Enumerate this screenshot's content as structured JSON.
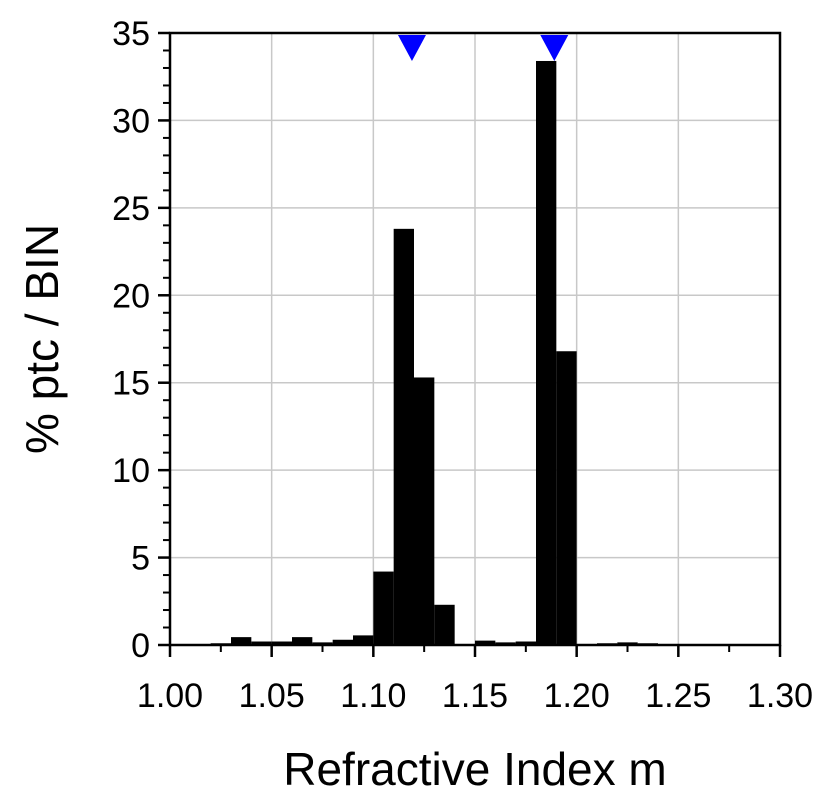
{
  "chart_data": {
    "type": "bar",
    "xlabel": "Refractive Index m",
    "ylabel": "% ptc / BIN",
    "xlim": [
      1.0,
      1.3
    ],
    "ylim": [
      0,
      35
    ],
    "grid": true,
    "bin_width": 0.01,
    "x_ticks": [
      "1.00",
      "1.05",
      "1.10",
      "1.15",
      "1.20",
      "1.25",
      "1.30"
    ],
    "y_ticks": [
      "0",
      "5",
      "10",
      "15",
      "20",
      "25",
      "30",
      "35"
    ],
    "bins": [
      {
        "x": 1.025,
        "value": 0.1
      },
      {
        "x": 1.035,
        "value": 0.45
      },
      {
        "x": 1.045,
        "value": 0.2
      },
      {
        "x": 1.055,
        "value": 0.2
      },
      {
        "x": 1.065,
        "value": 0.45
      },
      {
        "x": 1.075,
        "value": 0.15
      },
      {
        "x": 1.085,
        "value": 0.3
      },
      {
        "x": 1.095,
        "value": 0.55
      },
      {
        "x": 1.105,
        "value": 4.2
      },
      {
        "x": 1.115,
        "value": 23.8
      },
      {
        "x": 1.125,
        "value": 15.3
      },
      {
        "x": 1.135,
        "value": 2.3
      },
      {
        "x": 1.155,
        "value": 0.25
      },
      {
        "x": 1.165,
        "value": 0.15
      },
      {
        "x": 1.175,
        "value": 0.2
      },
      {
        "x": 1.185,
        "value": 33.4
      },
      {
        "x": 1.195,
        "value": 16.8
      },
      {
        "x": 1.215,
        "value": 0.1
      },
      {
        "x": 1.225,
        "value": 0.15
      },
      {
        "x": 1.235,
        "value": 0.1
      },
      {
        "x": 1.275,
        "value": 0.05
      }
    ],
    "markers": [
      {
        "x": 1.119,
        "color": "#0000ff"
      },
      {
        "x": 1.189,
        "color": "#0000ff"
      }
    ],
    "bar_color": "#000000",
    "grid_color": "#c8c8c8"
  }
}
